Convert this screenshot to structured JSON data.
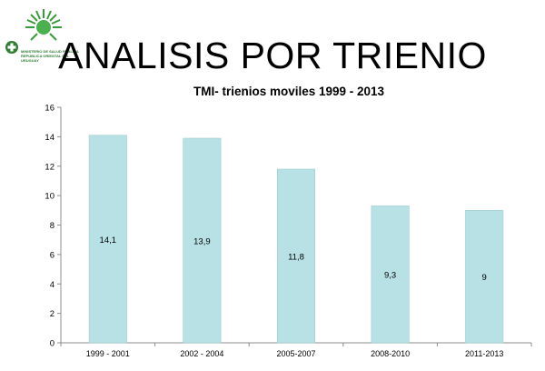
{
  "slide_title": "ANALISIS POR TRIENIO",
  "logo": {
    "line1": "MINISTERIO DE SALUD PÚBLICA",
    "line2": "REPÚBLICA ORIENTAL DEL URUGUAY",
    "color": "#2e7d32"
  },
  "chart_data": {
    "type": "bar",
    "title": "TMI- trienios moviles 1999 - 2013",
    "categories": [
      "1999 - 2001",
      "2002 - 2004",
      "2005-2007",
      "2008-2010",
      "2011-2013"
    ],
    "values": [
      14.1,
      13.9,
      11.8,
      9.3,
      9
    ],
    "value_labels": [
      "14,1",
      "13,9",
      "11,8",
      "9,3",
      "9"
    ],
    "ylim": [
      0,
      16
    ],
    "yticks": [
      0,
      2,
      4,
      6,
      8,
      10,
      12,
      14,
      16
    ],
    "xlabel": "",
    "ylabel": "",
    "grid": false,
    "bar_color": "#b7e1e4",
    "bar_edge_color": "#9fcdd1"
  }
}
